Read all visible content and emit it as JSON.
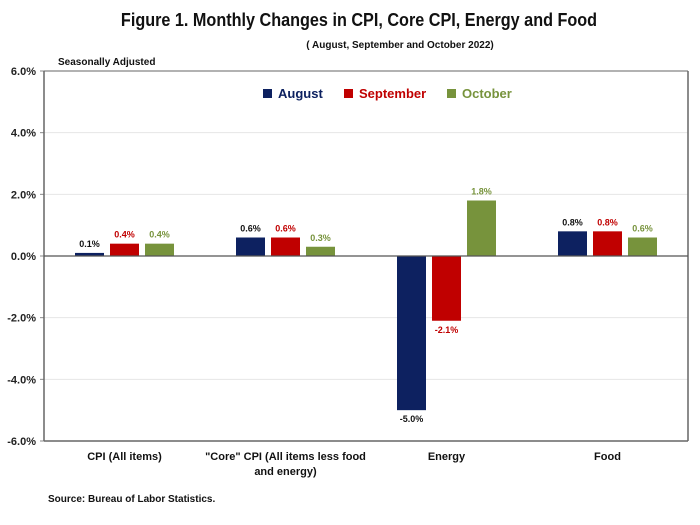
{
  "chart_data": {
    "type": "bar",
    "title": "Figure 1. Monthly Changes in CPI, Core CPI, Energy and Food",
    "subtitle": "( August, September and October 2022)",
    "note": "Seasonally Adjusted",
    "source": "Source: Bureau of Labor Statistics.",
    "xlabel": "",
    "ylabel": "",
    "ylim": [
      -6.0,
      6.0
    ],
    "yticks": [
      6.0,
      4.0,
      2.0,
      0.0,
      -2.0,
      -4.0,
      -6.0
    ],
    "ytick_labels": [
      "6.0%",
      "4.0%",
      "2.0%",
      "0.0%",
      "-2.0%",
      "-4.0%",
      "-6.0%"
    ],
    "grid": true,
    "legend_position": "top-center",
    "categories": [
      [
        "CPI (All items)"
      ],
      [
        "\"Core\" CPI (All items less food",
        "and energy)"
      ],
      [
        "Energy"
      ],
      [
        "Food"
      ]
    ],
    "series": [
      {
        "name": "August",
        "color": "#0d2160",
        "label_color": "#111111",
        "values": [
          0.1,
          0.6,
          -5.0,
          0.8
        ],
        "labels": [
          "0.1%",
          "0.6%",
          "-5.0%",
          "0.8%"
        ]
      },
      {
        "name": "September",
        "color": "#c00000",
        "label_color": "#c00000",
        "values": [
          0.4,
          0.6,
          -2.1,
          0.8
        ],
        "labels": [
          "0.4%",
          "0.6%",
          "-2.1%",
          "0.8%"
        ]
      },
      {
        "name": "October",
        "color": "#77933c",
        "label_color": "#77933c",
        "values": [
          0.4,
          0.3,
          1.8,
          0.6
        ],
        "labels": [
          "0.4%",
          "0.3%",
          "1.8%",
          "0.6%"
        ]
      }
    ]
  }
}
